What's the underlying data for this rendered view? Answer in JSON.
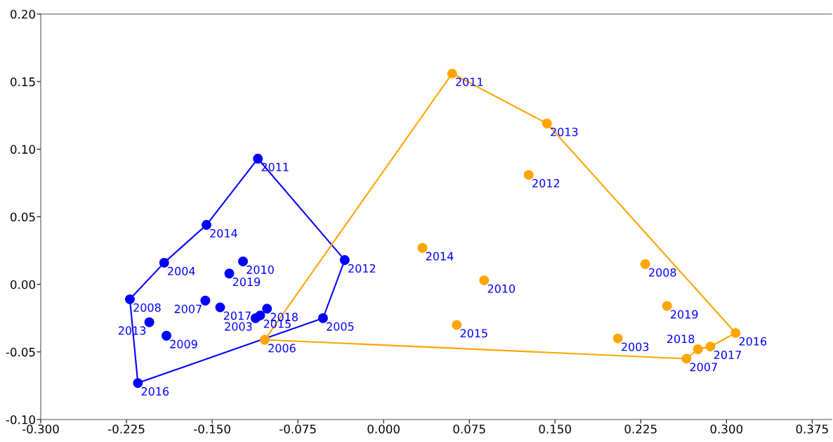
{
  "chart_data": {
    "type": "scatter",
    "grid": false,
    "legend": false,
    "xlim": [
      -0.3,
      0.392
    ],
    "ylim": [
      -0.1,
      0.2
    ],
    "xticks": [
      {
        "value": -0.3,
        "label": "-0.300"
      },
      {
        "value": -0.225,
        "label": "-0.225"
      },
      {
        "value": -0.15,
        "label": "-0.150"
      },
      {
        "value": -0.075,
        "label": "-0.075"
      },
      {
        "value": 0,
        "label": "0.000"
      },
      {
        "value": 0.075,
        "label": "0.075"
      },
      {
        "value": 0.15,
        "label": "0.150"
      },
      {
        "value": 0.225,
        "label": "0.225"
      },
      {
        "value": 0.3,
        "label": "0.300"
      },
      {
        "value": 0.375,
        "label": "0.375"
      }
    ],
    "yticks": [
      {
        "value": -0.1,
        "label": "-0.10"
      },
      {
        "value": -0.05,
        "label": "-0.05"
      },
      {
        "value": 0,
        "label": "0.00"
      },
      {
        "value": 0.05,
        "label": "0.05"
      },
      {
        "value": 0.1,
        "label": "0.10"
      },
      {
        "value": 0.15,
        "label": "0.15"
      },
      {
        "value": 0.2,
        "label": "0.20"
      }
    ],
    "series": [
      {
        "type": "line",
        "color": "#0000ff",
        "x": [
          -0.222,
          -0.192,
          -0.155,
          -0.11,
          -0.034
        ],
        "values": [
          -0.011,
          0.016,
          0.044,
          0.093,
          0.018
        ]
      },
      {
        "type": "line",
        "color": "#0000ff",
        "x": [
          -0.222,
          -0.215,
          -0.053,
          -0.034
        ],
        "values": [
          -0.011,
          -0.073,
          -0.025,
          0.018
        ]
      },
      {
        "type": "line",
        "color": "#ffa500",
        "x": [
          -0.104,
          0.06,
          0.143,
          0.308
        ],
        "values": [
          -0.041,
          0.156,
          0.119,
          -0.036
        ]
      },
      {
        "type": "line",
        "color": "#ffa500",
        "x": [
          -0.104,
          0.265,
          0.275,
          0.286,
          0.308
        ],
        "values": [
          -0.041,
          -0.055,
          -0.048,
          -0.046,
          -0.036
        ]
      },
      {
        "marker": "circle",
        "color": "#0000ff",
        "x": [
          -0.11,
          -0.155,
          -0.192,
          -0.123,
          -0.135,
          -0.034,
          -0.222,
          -0.156,
          -0.143,
          -0.102,
          -0.112,
          -0.108,
          -0.053,
          -0.205,
          -0.19,
          -0.215
        ],
        "values": [
          0.093,
          0.044,
          0.016,
          0.017,
          0.008,
          0.018,
          -0.011,
          -0.012,
          -0.017,
          -0.018,
          -0.025,
          -0.023,
          -0.025,
          -0.028,
          -0.038,
          -0.073
        ]
      },
      {
        "marker": "circle",
        "color": "#ffa500",
        "x": [
          0.06,
          0.143,
          0.127,
          0.034,
          0.088,
          0.064,
          0.229,
          0.248,
          0.205,
          0.308,
          0.286,
          0.275,
          0.265,
          -0.104
        ],
        "values": [
          0.156,
          0.119,
          0.081,
          0.027,
          0.003,
          -0.03,
          0.015,
          -0.016,
          -0.04,
          -0.036,
          -0.046,
          -0.048,
          -0.055,
          -0.041
        ]
      }
    ],
    "annotations": [
      {
        "text": "2011",
        "x": -0.11,
        "y": 0.093
      },
      {
        "text": "2014",
        "x": -0.155,
        "y": 0.044
      },
      {
        "text": "2004",
        "x": -0.192,
        "y": 0.016
      },
      {
        "text": "2010",
        "x": -0.123,
        "y": 0.017
      },
      {
        "text": "2019",
        "x": -0.135,
        "y": 0.008
      },
      {
        "text": "2012",
        "x": -0.034,
        "y": 0.018
      },
      {
        "text": "2008",
        "x": -0.222,
        "y": -0.011
      },
      {
        "text": "2007",
        "x": -0.156,
        "y": -0.012
      },
      {
        "text": "2017",
        "x": -0.143,
        "y": -0.017
      },
      {
        "text": "2018",
        "x": -0.102,
        "y": -0.018
      },
      {
        "text": "2003",
        "x": -0.112,
        "y": -0.025
      },
      {
        "text": "2015",
        "x": -0.108,
        "y": -0.023
      },
      {
        "text": "2005",
        "x": -0.053,
        "y": -0.025
      },
      {
        "text": "2013",
        "x": -0.205,
        "y": -0.028
      },
      {
        "text": "2009",
        "x": -0.19,
        "y": -0.038
      },
      {
        "text": "2016",
        "x": -0.215,
        "y": -0.073
      },
      {
        "text": "2011",
        "x": 0.06,
        "y": 0.156
      },
      {
        "text": "2013",
        "x": 0.143,
        "y": 0.119
      },
      {
        "text": "2012",
        "x": 0.127,
        "y": 0.081
      },
      {
        "text": "2014",
        "x": 0.034,
        "y": 0.027
      },
      {
        "text": "2010",
        "x": 0.088,
        "y": 0.003
      },
      {
        "text": "2015",
        "x": 0.064,
        "y": -0.03
      },
      {
        "text": "2008",
        "x": 0.229,
        "y": 0.015
      },
      {
        "text": "2019",
        "x": 0.248,
        "y": -0.016
      },
      {
        "text": "2003",
        "x": 0.205,
        "y": -0.04
      },
      {
        "text": "2016",
        "x": 0.308,
        "y": -0.036
      },
      {
        "text": "2017",
        "x": 0.286,
        "y": -0.046
      },
      {
        "text": "2018",
        "x": 0.275,
        "y": -0.048
      },
      {
        "text": "2007",
        "x": 0.265,
        "y": -0.055
      },
      {
        "text": "2006",
        "x": -0.104,
        "y": -0.041
      }
    ]
  }
}
